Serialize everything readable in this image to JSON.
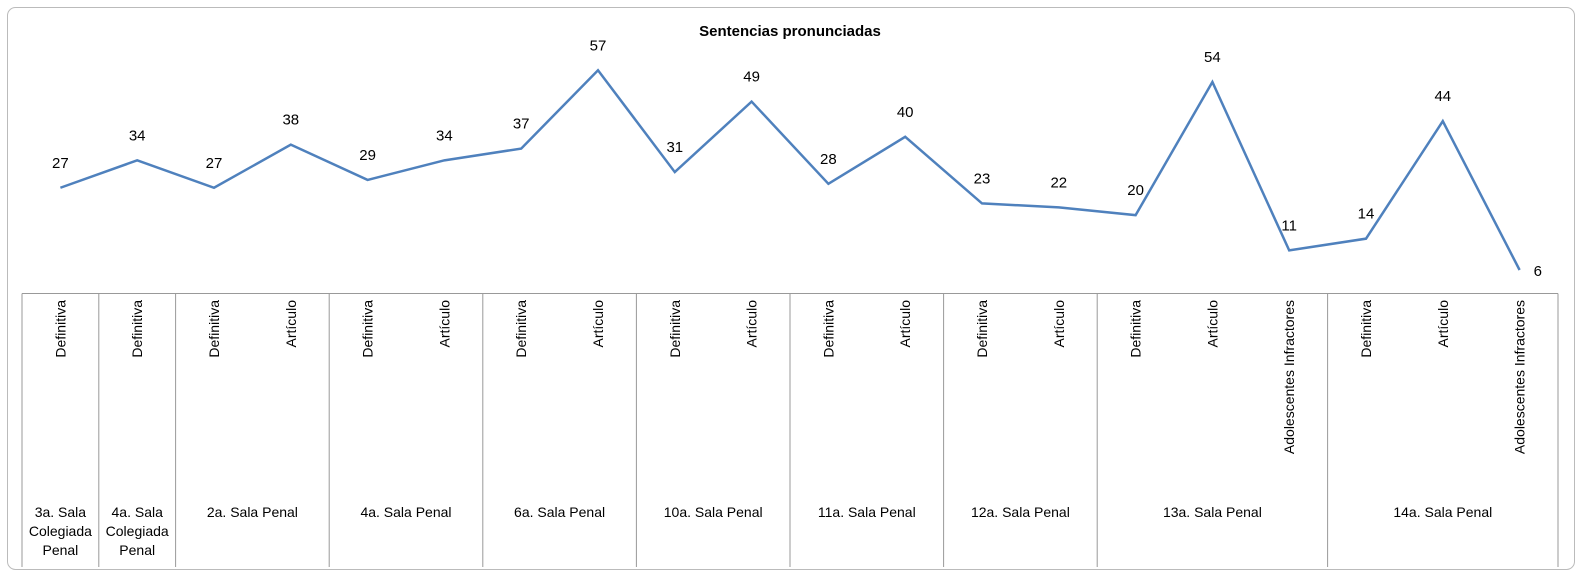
{
  "chart_data": {
    "type": "line",
    "title": "Sentencias pronunciadas",
    "groups": [
      {
        "name": "3a. Sala Colegiada Penal",
        "categories": [
          "Definitiva"
        ]
      },
      {
        "name": "4a. Sala Colegiada Penal",
        "categories": [
          "Definitiva"
        ]
      },
      {
        "name": "2a. Sala Penal",
        "categories": [
          "Definitiva",
          "Artículo"
        ]
      },
      {
        "name": "4a. Sala Penal",
        "categories": [
          "Definitiva",
          "Artículo"
        ]
      },
      {
        "name": "6a. Sala Penal",
        "categories": [
          "Definitiva",
          "Artículo"
        ]
      },
      {
        "name": "10a. Sala Penal",
        "categories": [
          "Definitiva",
          "Artículo"
        ]
      },
      {
        "name": "11a. Sala Penal",
        "categories": [
          "Definitiva",
          "Artículo"
        ]
      },
      {
        "name": "12a. Sala Penal",
        "categories": [
          "Definitiva",
          "Artículo"
        ]
      },
      {
        "name": "13a. Sala Penal",
        "categories": [
          "Definitiva",
          "Artículo",
          "Adolescentes Infractores"
        ]
      },
      {
        "name": "14a. Sala Penal",
        "categories": [
          "Definitiva",
          "Artículo",
          "Adolescentes Infractores"
        ]
      }
    ],
    "values": [
      27,
      34,
      27,
      38,
      29,
      34,
      37,
      57,
      31,
      49,
      28,
      40,
      23,
      22,
      20,
      54,
      11,
      14,
      44,
      6
    ],
    "color": "#4f81bd",
    "ylim": [
      0,
      60
    ]
  }
}
